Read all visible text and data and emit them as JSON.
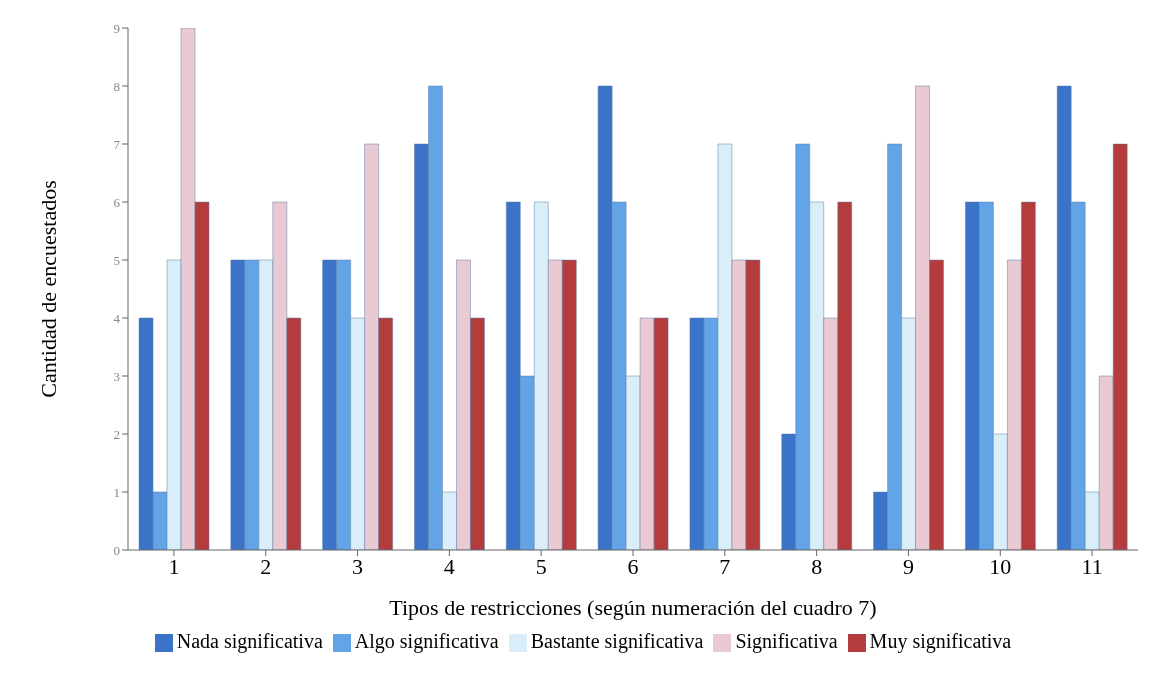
{
  "chart_data": {
    "type": "bar",
    "xlabel": "Tipos de restricciones (según numeración del cuadro 7)",
    "ylabel": "Cantidad de encuestados",
    "categories": [
      "1",
      "2",
      "3",
      "4",
      "5",
      "6",
      "7",
      "8",
      "9",
      "10",
      "11"
    ],
    "series": [
      {
        "name": "Nada significativa",
        "color": "#3b73c8",
        "values": [
          4,
          5,
          5,
          7,
          6,
          8,
          4,
          2,
          1,
          6,
          8
        ]
      },
      {
        "name": "Algo significativa",
        "color": "#62a4e6",
        "values": [
          1,
          5,
          5,
          8,
          3,
          6,
          4,
          7,
          7,
          6,
          6
        ]
      },
      {
        "name": "Bastante significativa",
        "color": "#d9eef8",
        "values": [
          5,
          5,
          4,
          1,
          6,
          3,
          7,
          6,
          4,
          2,
          1
        ]
      },
      {
        "name": "Significativa",
        "color": "#e9c9d2",
        "values": [
          9,
          6,
          7,
          5,
          5,
          4,
          5,
          4,
          8,
          5,
          3
        ]
      },
      {
        "name": "Muy significativa",
        "color": "#b53c3c",
        "values": [
          6,
          4,
          4,
          4,
          5,
          4,
          5,
          6,
          5,
          6,
          7
        ]
      }
    ],
    "ylim": [
      0,
      9
    ],
    "yticks": [
      0,
      1,
      2,
      3,
      4,
      5,
      6,
      7,
      8,
      9
    ],
    "grid": false,
    "legend": "bottom"
  }
}
